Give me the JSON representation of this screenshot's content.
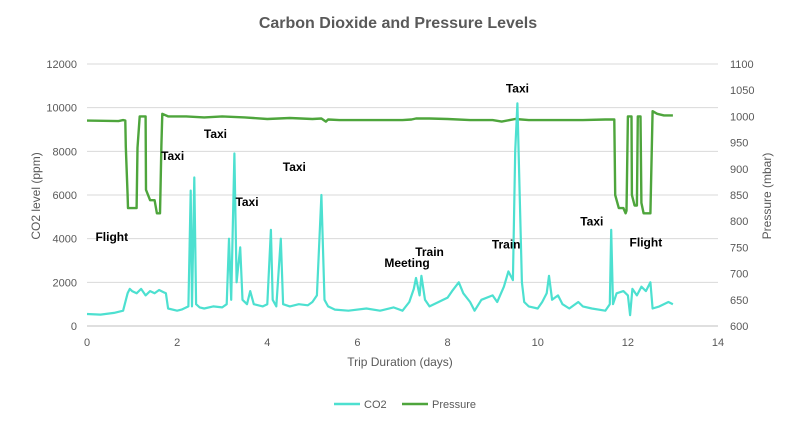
{
  "chart_data": {
    "type": "line",
    "title": "Carbon Dioxide and Pressure Levels",
    "xlabel": "Trip Duration (days)",
    "ylabel": "CO2 level (ppm)",
    "y2label": "Pressure (mbar)",
    "xlim": [
      0,
      14
    ],
    "ylim": [
      0,
      12000
    ],
    "y2lim": [
      600,
      1100
    ],
    "xticks": [
      "0",
      "2",
      "4",
      "6",
      "8",
      "10",
      "12",
      "14"
    ],
    "yticks": [
      "0",
      "2000",
      "4000",
      "6000",
      "8000",
      "10000",
      "12000"
    ],
    "y2ticks": [
      "600",
      "650",
      "700",
      "750",
      "800",
      "850",
      "900",
      "950",
      "1000",
      "1050",
      "1100"
    ],
    "grid": "horizontal",
    "legend_position": "bottom",
    "colors": {
      "co2": "#4de0d0",
      "pressure": "#4ea53c"
    },
    "series": [
      {
        "name": "CO2",
        "axis": "left",
        "points": [
          [
            0.0,
            550
          ],
          [
            0.3,
            520
          ],
          [
            0.6,
            600
          ],
          [
            0.8,
            700
          ],
          [
            0.9,
            1500
          ],
          [
            0.95,
            1700
          ],
          [
            1.0,
            1600
          ],
          [
            1.1,
            1500
          ],
          [
            1.2,
            1700
          ],
          [
            1.3,
            1400
          ],
          [
            1.4,
            1600
          ],
          [
            1.5,
            1500
          ],
          [
            1.6,
            1650
          ],
          [
            1.7,
            1550
          ],
          [
            1.75,
            1500
          ],
          [
            1.8,
            800
          ],
          [
            2.0,
            700
          ],
          [
            2.1,
            750
          ],
          [
            2.25,
            900
          ],
          [
            2.3,
            6200
          ],
          [
            2.33,
            900
          ],
          [
            2.38,
            6800
          ],
          [
            2.42,
            1000
          ],
          [
            2.5,
            850
          ],
          [
            2.6,
            800
          ],
          [
            2.8,
            900
          ],
          [
            3.0,
            850
          ],
          [
            3.1,
            1000
          ],
          [
            3.15,
            4000
          ],
          [
            3.2,
            1200
          ],
          [
            3.27,
            7900
          ],
          [
            3.32,
            2000
          ],
          [
            3.4,
            3600
          ],
          [
            3.45,
            1200
          ],
          [
            3.55,
            1000
          ],
          [
            3.62,
            1600
          ],
          [
            3.7,
            1000
          ],
          [
            3.9,
            900
          ],
          [
            4.0,
            1000
          ],
          [
            4.08,
            4400
          ],
          [
            4.12,
            1200
          ],
          [
            4.2,
            900
          ],
          [
            4.3,
            4000
          ],
          [
            4.35,
            1000
          ],
          [
            4.5,
            900
          ],
          [
            4.7,
            1000
          ],
          [
            4.9,
            950
          ],
          [
            5.0,
            1100
          ],
          [
            5.1,
            1400
          ],
          [
            5.2,
            6000
          ],
          [
            5.27,
            1200
          ],
          [
            5.35,
            900
          ],
          [
            5.5,
            750
          ],
          [
            5.8,
            700
          ],
          [
            6.2,
            800
          ],
          [
            6.5,
            700
          ],
          [
            6.8,
            850
          ],
          [
            7.0,
            700
          ],
          [
            7.15,
            1100
          ],
          [
            7.25,
            1700
          ],
          [
            7.3,
            2200
          ],
          [
            7.38,
            1400
          ],
          [
            7.42,
            2300
          ],
          [
            7.5,
            1200
          ],
          [
            7.6,
            900
          ],
          [
            7.8,
            1100
          ],
          [
            8.0,
            1300
          ],
          [
            8.1,
            1600
          ],
          [
            8.25,
            2000
          ],
          [
            8.35,
            1500
          ],
          [
            8.5,
            1100
          ],
          [
            8.6,
            700
          ],
          [
            8.75,
            1200
          ],
          [
            9.0,
            1400
          ],
          [
            9.1,
            1100
          ],
          [
            9.25,
            1800
          ],
          [
            9.35,
            2500
          ],
          [
            9.45,
            2100
          ],
          [
            9.5,
            8000
          ],
          [
            9.55,
            10200
          ],
          [
            9.6,
            6000
          ],
          [
            9.65,
            2000
          ],
          [
            9.7,
            1100
          ],
          [
            9.8,
            900
          ],
          [
            10.0,
            800
          ],
          [
            10.1,
            1100
          ],
          [
            10.2,
            1500
          ],
          [
            10.25,
            2300
          ],
          [
            10.32,
            1200
          ],
          [
            10.45,
            1400
          ],
          [
            10.55,
            1000
          ],
          [
            10.7,
            800
          ],
          [
            10.9,
            1100
          ],
          [
            11.0,
            900
          ],
          [
            11.2,
            800
          ],
          [
            11.5,
            700
          ],
          [
            11.6,
            1000
          ],
          [
            11.63,
            4400
          ],
          [
            11.67,
            1000
          ],
          [
            11.75,
            1500
          ],
          [
            11.9,
            1600
          ],
          [
            12.0,
            1400
          ],
          [
            12.05,
            500
          ],
          [
            12.1,
            1700
          ],
          [
            12.2,
            1400
          ],
          [
            12.3,
            1800
          ],
          [
            12.4,
            1600
          ],
          [
            12.5,
            2000
          ],
          [
            12.55,
            800
          ],
          [
            12.7,
            900
          ],
          [
            12.9,
            1100
          ],
          [
            13.0,
            1000
          ]
        ]
      },
      {
        "name": "Pressure",
        "axis": "right",
        "points": [
          [
            0.0,
            992
          ],
          [
            0.7,
            991
          ],
          [
            0.8,
            993
          ],
          [
            0.85,
            992
          ],
          [
            0.86,
            942
          ],
          [
            0.9,
            850
          ],
          [
            0.91,
            825
          ],
          [
            1.1,
            825
          ],
          [
            1.12,
            940
          ],
          [
            1.17,
            1000
          ],
          [
            1.3,
            1000
          ],
          [
            1.31,
            860
          ],
          [
            1.4,
            840
          ],
          [
            1.5,
            840
          ],
          [
            1.55,
            815
          ],
          [
            1.62,
            815
          ],
          [
            1.63,
            860
          ],
          [
            1.65,
            945
          ],
          [
            1.67,
            1005
          ],
          [
            1.8,
            1000
          ],
          [
            2.2,
            1000
          ],
          [
            2.6,
            998
          ],
          [
            3.0,
            1000
          ],
          [
            3.5,
            998
          ],
          [
            4.0,
            995
          ],
          [
            4.5,
            997
          ],
          [
            5.0,
            995
          ],
          [
            5.2,
            996
          ],
          [
            5.3,
            990
          ],
          [
            5.35,
            994
          ],
          [
            5.6,
            993
          ],
          [
            6.0,
            993
          ],
          [
            6.5,
            993
          ],
          [
            7.0,
            993
          ],
          [
            7.2,
            994
          ],
          [
            7.3,
            996
          ],
          [
            7.6,
            996
          ],
          [
            8.0,
            995
          ],
          [
            8.5,
            993
          ],
          [
            9.0,
            993
          ],
          [
            9.2,
            990
          ],
          [
            9.5,
            995
          ],
          [
            9.8,
            993
          ],
          [
            10.0,
            993
          ],
          [
            10.5,
            993
          ],
          [
            11.0,
            993
          ],
          [
            11.5,
            994
          ],
          [
            11.7,
            994
          ],
          [
            11.72,
            850
          ],
          [
            11.8,
            825
          ],
          [
            11.9,
            825
          ],
          [
            11.95,
            815
          ],
          [
            11.97,
            820
          ],
          [
            12.0,
            1000
          ],
          [
            12.08,
            1000
          ],
          [
            12.09,
            850
          ],
          [
            12.15,
            830
          ],
          [
            12.2,
            830
          ],
          [
            12.22,
            1000
          ],
          [
            12.28,
            1000
          ],
          [
            12.3,
            835
          ],
          [
            12.35,
            815
          ],
          [
            12.5,
            815
          ],
          [
            12.55,
            1010
          ],
          [
            12.65,
            1005
          ],
          [
            12.8,
            1002
          ],
          [
            13.0,
            1002
          ]
        ]
      }
    ],
    "annotations": [
      {
        "text": "Flight",
        "x": 0.55,
        "y": 3900
      },
      {
        "text": "Taxi",
        "x": 1.9,
        "y": 7600
      },
      {
        "text": "Taxi",
        "x": 2.85,
        "y": 8600
      },
      {
        "text": "Taxi",
        "x": 3.55,
        "y": 5500
      },
      {
        "text": "Taxi",
        "x": 4.6,
        "y": 7100
      },
      {
        "text": "Meeting",
        "x": 7.1,
        "y": 2700
      },
      {
        "text": "Train",
        "x": 7.6,
        "y": 3200
      },
      {
        "text": "Train",
        "x": 9.3,
        "y": 3550
      },
      {
        "text": "Taxi",
        "x": 9.55,
        "y": 10700
      },
      {
        "text": "Taxi",
        "x": 11.2,
        "y": 4600
      },
      {
        "text": "Flight",
        "x": 12.4,
        "y": 3650
      }
    ]
  }
}
